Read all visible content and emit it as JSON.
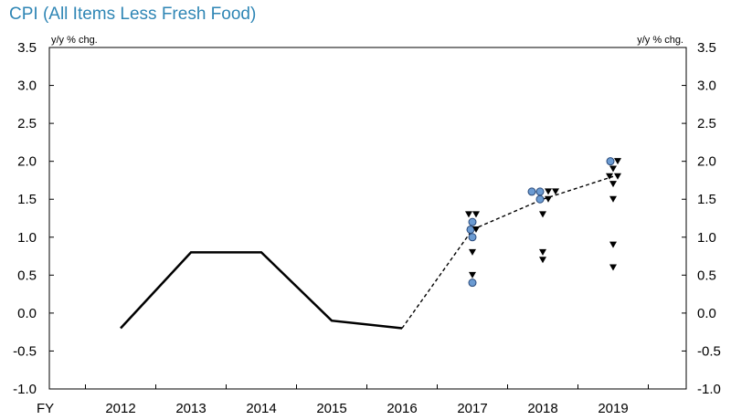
{
  "chart_data": {
    "type": "line",
    "title": "CPI (All Items Less Fresh Food)",
    "ylabel_left": "y/y % chg.",
    "ylabel_right": "y/y % chg.",
    "x_prefix_label": "FY",
    "categories": [
      "2012",
      "2013",
      "2014",
      "2015",
      "2016",
      "2017",
      "2018",
      "2019"
    ],
    "ylim": [
      -1.0,
      3.5
    ],
    "yticks": [
      "3.5",
      "3.0",
      "2.5",
      "2.0",
      "1.5",
      "1.0",
      "0.5",
      "0.0",
      "-0.5",
      "-1.0"
    ],
    "series": [
      {
        "style": "solid-line",
        "points": [
          {
            "x": "2012",
            "y": -0.2
          },
          {
            "x": "2013",
            "y": 0.8
          },
          {
            "x": "2014",
            "y": 0.8
          },
          {
            "x": "2015",
            "y": -0.1
          },
          {
            "x": "2016",
            "y": -0.2
          }
        ]
      },
      {
        "style": "dashed-line",
        "points": [
          {
            "x": "2016",
            "y": -0.2
          },
          {
            "x": "2017",
            "y": 1.1
          },
          {
            "x": "2018",
            "y": 1.5
          },
          {
            "x": "2019",
            "y": 1.8
          }
        ]
      },
      {
        "style": "circle-markers",
        "color": "#6b9bd2",
        "points": [
          {
            "x": "2017",
            "dx": -2,
            "y": 1.1
          },
          {
            "x": "2017",
            "dx": 0,
            "y": 1.2
          },
          {
            "x": "2017",
            "dx": 0,
            "y": 1.0
          },
          {
            "x": "2017",
            "dx": 0,
            "y": 0.4
          },
          {
            "x": "2018",
            "dx": -12,
            "y": 1.6
          },
          {
            "x": "2018",
            "dx": -3,
            "y": 1.6
          },
          {
            "x": "2018",
            "dx": -3,
            "y": 1.5
          },
          {
            "x": "2019",
            "dx": -3,
            "y": 2.0
          }
        ]
      },
      {
        "style": "triangle-markers",
        "color": "#000000",
        "points": [
          {
            "x": "2017",
            "dx": -4,
            "y": 1.3
          },
          {
            "x": "2017",
            "dx": 4,
            "y": 1.3
          },
          {
            "x": "2017",
            "dx": 4,
            "y": 1.1
          },
          {
            "x": "2017",
            "dx": 0,
            "y": 0.8
          },
          {
            "x": "2017",
            "dx": 0,
            "y": 0.5
          },
          {
            "x": "2018",
            "dx": 6,
            "y": 1.6
          },
          {
            "x": "2018",
            "dx": 14,
            "y": 1.6
          },
          {
            "x": "2018",
            "dx": 6,
            "y": 1.5
          },
          {
            "x": "2018",
            "dx": 0,
            "y": 1.3
          },
          {
            "x": "2018",
            "dx": 0,
            "y": 0.8
          },
          {
            "x": "2018",
            "dx": 0,
            "y": 0.7
          },
          {
            "x": "2019",
            "dx": 5,
            "y": 2.0
          },
          {
            "x": "2019",
            "dx": 0,
            "y": 1.9
          },
          {
            "x": "2019",
            "dx": -4,
            "y": 1.8
          },
          {
            "x": "2019",
            "dx": 5,
            "y": 1.8
          },
          {
            "x": "2019",
            "dx": 0,
            "y": 1.7
          },
          {
            "x": "2019",
            "dx": 0,
            "y": 1.5
          },
          {
            "x": "2019",
            "dx": 0,
            "y": 0.9
          },
          {
            "x": "2019",
            "dx": 0,
            "y": 0.6
          }
        ]
      }
    ]
  }
}
